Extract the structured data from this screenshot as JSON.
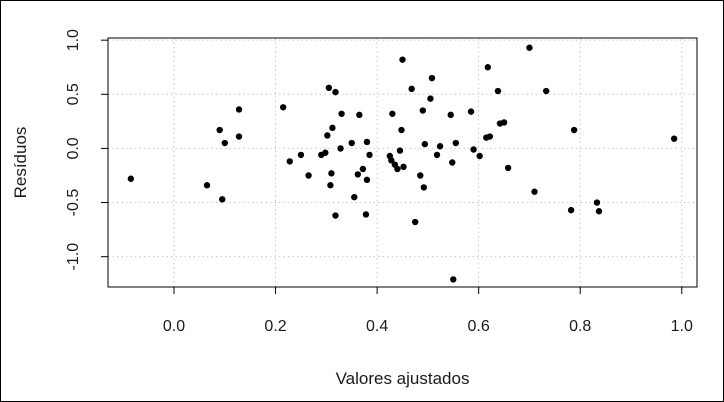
{
  "chart_data": {
    "type": "scatter",
    "xlabel": "Valores ajustados",
    "ylabel": "Resíduos",
    "xlim": [
      -0.13,
      1.03
    ],
    "ylim": [
      -1.28,
      1.02
    ],
    "xticks": [
      0.0,
      0.2,
      0.4,
      0.6,
      0.8,
      1.0
    ],
    "xtick_labels": [
      "0.0",
      "0.2",
      "0.4",
      "0.6",
      "0.8",
      "1.0"
    ],
    "yticks": [
      -1.0,
      -0.5,
      0.0,
      0.5,
      1.0
    ],
    "ytick_labels": [
      "-1.0",
      "-0.5",
      "0.0",
      "0.5",
      "1.0"
    ],
    "grid": true,
    "grid_style": "dotted",
    "point_color": "#000000",
    "points": [
      {
        "x": -0.085,
        "y": -0.28
      },
      {
        "x": 0.065,
        "y": -0.34
      },
      {
        "x": 0.09,
        "y": 0.17
      },
      {
        "x": 0.095,
        "y": -0.47
      },
      {
        "x": 0.1,
        "y": 0.05
      },
      {
        "x": 0.128,
        "y": 0.36
      },
      {
        "x": 0.128,
        "y": 0.11
      },
      {
        "x": 0.215,
        "y": 0.38
      },
      {
        "x": 0.228,
        "y": -0.12
      },
      {
        "x": 0.25,
        "y": -0.06
      },
      {
        "x": 0.265,
        "y": -0.25
      },
      {
        "x": 0.29,
        "y": -0.06
      },
      {
        "x": 0.298,
        "y": -0.04
      },
      {
        "x": 0.302,
        "y": 0.12
      },
      {
        "x": 0.305,
        "y": 0.56
      },
      {
        "x": 0.308,
        "y": -0.34
      },
      {
        "x": 0.31,
        "y": -0.23
      },
      {
        "x": 0.312,
        "y": 0.19
      },
      {
        "x": 0.318,
        "y": -0.62
      },
      {
        "x": 0.318,
        "y": 0.52
      },
      {
        "x": 0.328,
        "y": 0.0
      },
      {
        "x": 0.33,
        "y": 0.32
      },
      {
        "x": 0.35,
        "y": 0.05
      },
      {
        "x": 0.355,
        "y": -0.45
      },
      {
        "x": 0.362,
        "y": -0.24
      },
      {
        "x": 0.365,
        "y": 0.31
      },
      {
        "x": 0.372,
        "y": -0.19
      },
      {
        "x": 0.378,
        "y": -0.61
      },
      {
        "x": 0.38,
        "y": -0.29
      },
      {
        "x": 0.38,
        "y": 0.06
      },
      {
        "x": 0.385,
        "y": -0.06
      },
      {
        "x": 0.425,
        "y": -0.07
      },
      {
        "x": 0.428,
        "y": -0.11
      },
      {
        "x": 0.43,
        "y": 0.32
      },
      {
        "x": 0.435,
        "y": -0.15
      },
      {
        "x": 0.44,
        "y": -0.19
      },
      {
        "x": 0.445,
        "y": -0.02
      },
      {
        "x": 0.448,
        "y": 0.17
      },
      {
        "x": 0.45,
        "y": 0.82
      },
      {
        "x": 0.452,
        "y": -0.17
      },
      {
        "x": 0.468,
        "y": 0.55
      },
      {
        "x": 0.475,
        "y": -0.68
      },
      {
        "x": 0.485,
        "y": -0.25
      },
      {
        "x": 0.49,
        "y": 0.35
      },
      {
        "x": 0.492,
        "y": -0.36
      },
      {
        "x": 0.494,
        "y": 0.04
      },
      {
        "x": 0.505,
        "y": 0.46
      },
      {
        "x": 0.508,
        "y": 0.65
      },
      {
        "x": 0.518,
        "y": -0.06
      },
      {
        "x": 0.524,
        "y": 0.02
      },
      {
        "x": 0.545,
        "y": 0.31
      },
      {
        "x": 0.548,
        "y": -0.13
      },
      {
        "x": 0.55,
        "y": -1.21
      },
      {
        "x": 0.555,
        "y": 0.05
      },
      {
        "x": 0.585,
        "y": 0.34
      },
      {
        "x": 0.59,
        "y": -0.01
      },
      {
        "x": 0.602,
        "y": -0.07
      },
      {
        "x": 0.615,
        "y": 0.1
      },
      {
        "x": 0.618,
        "y": 0.75
      },
      {
        "x": 0.622,
        "y": 0.11
      },
      {
        "x": 0.638,
        "y": 0.53
      },
      {
        "x": 0.642,
        "y": 0.23
      },
      {
        "x": 0.65,
        "y": 0.24
      },
      {
        "x": 0.658,
        "y": -0.18
      },
      {
        "x": 0.7,
        "y": 0.93
      },
      {
        "x": 0.71,
        "y": -0.4
      },
      {
        "x": 0.733,
        "y": 0.53
      },
      {
        "x": 0.782,
        "y": -0.57
      },
      {
        "x": 0.788,
        "y": 0.17
      },
      {
        "x": 0.833,
        "y": -0.5
      },
      {
        "x": 0.837,
        "y": -0.58
      },
      {
        "x": 0.985,
        "y": 0.09
      }
    ]
  }
}
